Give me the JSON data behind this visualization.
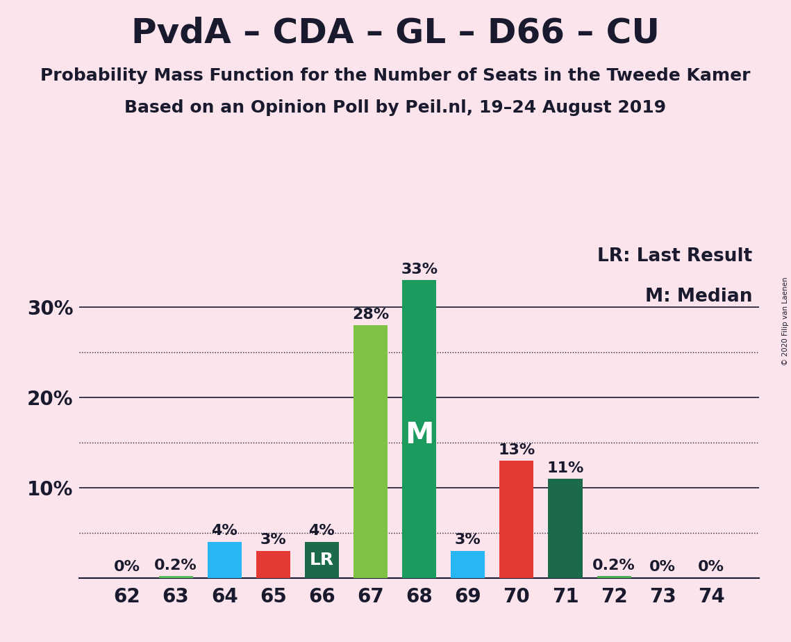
{
  "title": "PvdA – CDA – GL – D66 – CU",
  "subtitle1": "Probability Mass Function for the Number of Seats in the Tweede Kamer",
  "subtitle2": "Based on an Opinion Poll by Peil.nl, 19–24 August 2019",
  "copyright": "© 2020 Filip van Laenen",
  "seats": [
    62,
    63,
    64,
    65,
    66,
    67,
    68,
    69,
    70,
    71,
    72,
    73,
    74
  ],
  "values": [
    0.0,
    0.2,
    4.0,
    3.0,
    4.0,
    28.0,
    33.0,
    3.0,
    13.0,
    11.0,
    0.2,
    0.0,
    0.0
  ],
  "labels": [
    "0%",
    "0.2%",
    "4%",
    "3%",
    "4%",
    "28%",
    "33%",
    "3%",
    "13%",
    "11%",
    "0.2%",
    "0%",
    "0%"
  ],
  "bar_colors": [
    "#4caf50",
    "#5abf5a",
    "#29b6f6",
    "#e53935",
    "#1b6b4a",
    "#7dc243",
    "#1b9b5e",
    "#29b6f6",
    "#e53935",
    "#1b6b4a",
    "#4caf50",
    "#4caf50",
    "#4caf50"
  ],
  "last_result_seat": 66,
  "median_seat": 68,
  "legend_lr": "LR: Last Result",
  "legend_m": "M: Median",
  "background_color": "#fce4ec",
  "solid_yticks": [
    0,
    10,
    20,
    30
  ],
  "dotted_yticks": [
    5,
    15,
    25
  ],
  "ylim": [
    0,
    37
  ],
  "title_fontsize": 36,
  "subtitle_fontsize": 18,
  "bar_label_fontsize": 16,
  "axis_label_fontsize": 20,
  "legend_fontsize": 19,
  "median_label": "M",
  "lr_label": "LR",
  "text_color": "#1a1a2e"
}
